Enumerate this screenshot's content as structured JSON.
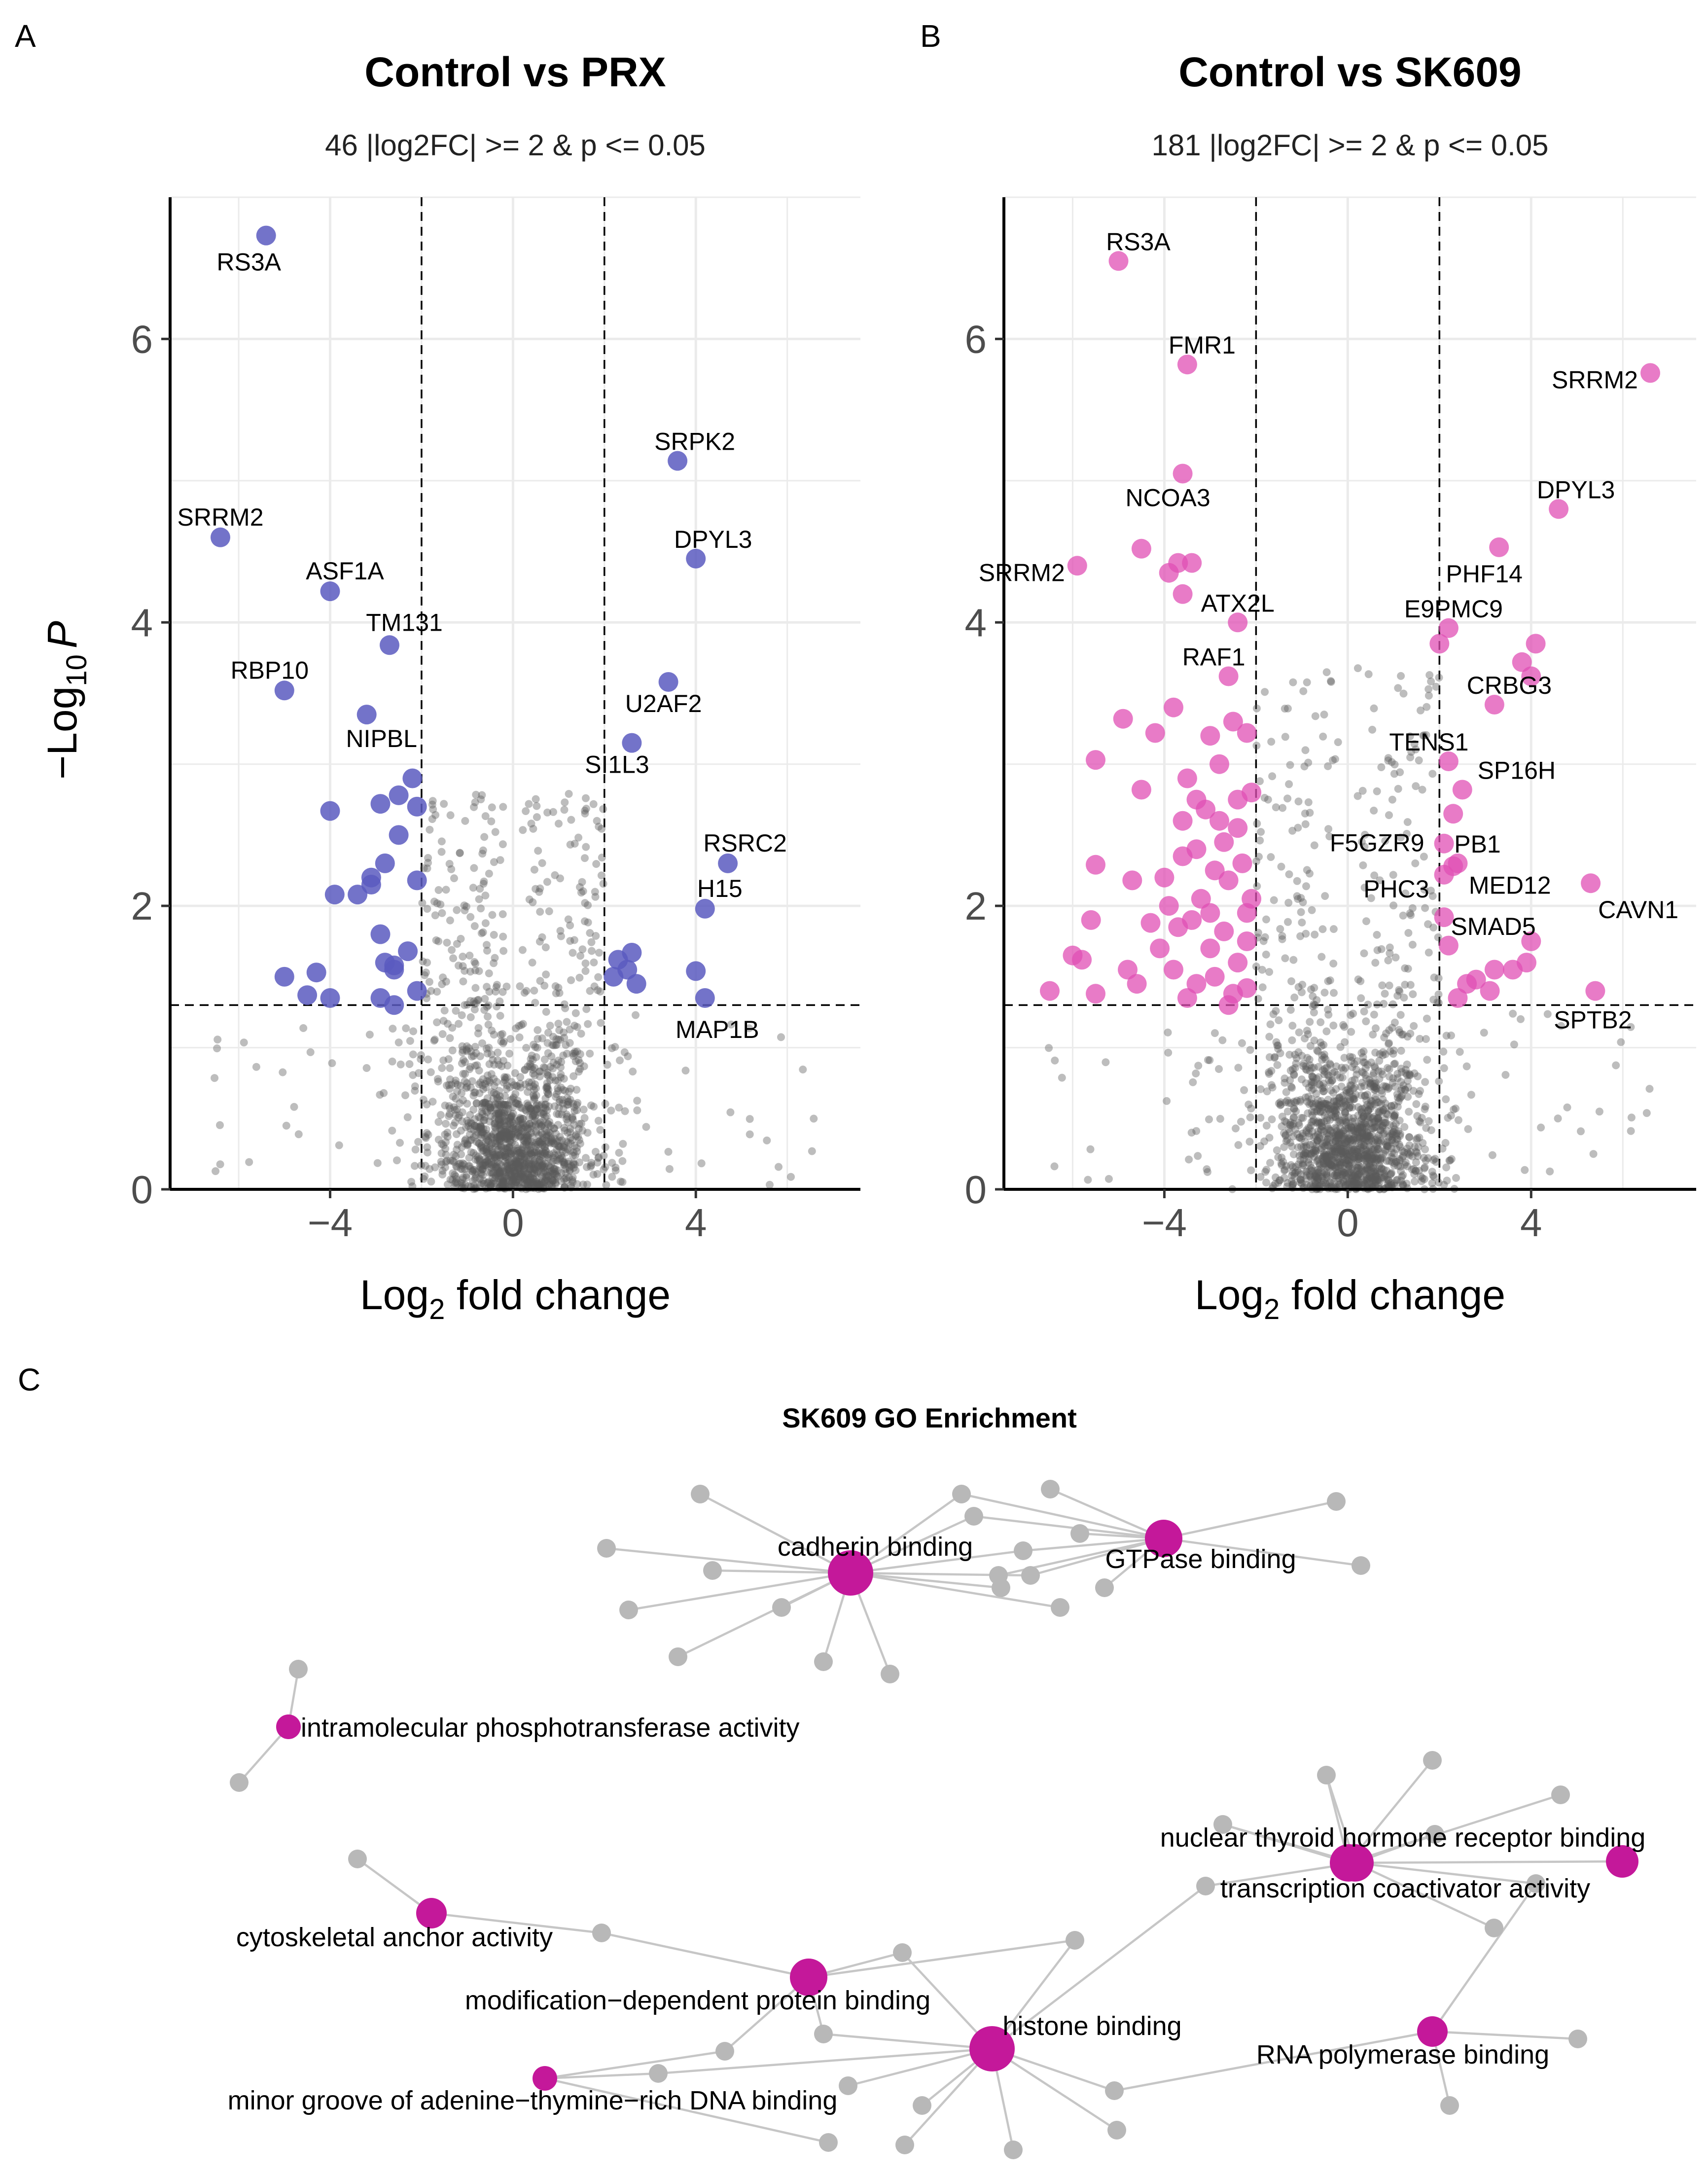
{
  "panel_letters": [
    "A",
    "B",
    "C"
  ],
  "axis_text": {
    "xlabel_main": "Log",
    "xlabel_sub": "2",
    "xlabel_rest": " fold change",
    "ylabel_prefix": "−Log",
    "ylabel_sub": "10",
    "ylabel_p": "P"
  },
  "colors": {
    "prx_sig": "#5b5bc0",
    "sk609_sig": "#e04fb4",
    "background_points": "#5a5a5a",
    "go_term": "#c4189a",
    "go_gene": "#b8b8b8",
    "go_edge": "#c6c6c6"
  },
  "chart_data": [
    {
      "type": "scatter",
      "panel": "A",
      "title": "Control vs PRX",
      "subtitle": "46 |log2FC| >= 2 & p <= 0.05",
      "xlabel": "Log2 fold change",
      "ylabel": "−Log10 P",
      "xlim": [
        -7.5,
        7.6
      ],
      "ylim": [
        0,
        7
      ],
      "xticks": [
        -4,
        0,
        4
      ],
      "yticks": [
        0,
        2,
        4,
        6
      ],
      "xtick_labels": [
        "−4",
        "0",
        "4"
      ],
      "ytick_labels": [
        "0",
        "2",
        "4",
        "6"
      ],
      "grid": true,
      "vlines": [
        -2,
        2
      ],
      "hline": 1.3,
      "significant_points": [
        {
          "x": -5.4,
          "y": 6.73,
          "label": "RS3A"
        },
        {
          "x": -6.4,
          "y": 4.6,
          "label": "SRRM2"
        },
        {
          "x": -4.0,
          "y": 4.22,
          "label": "ASF1A"
        },
        {
          "x": -2.7,
          "y": 3.84,
          "label": "TM131"
        },
        {
          "x": -5.0,
          "y": 3.52,
          "label": "RBP10"
        },
        {
          "x": -3.2,
          "y": 3.35,
          "label": "NIPBL"
        },
        {
          "x": 3.6,
          "y": 5.14,
          "label": "SRPK2"
        },
        {
          "x": 4.0,
          "y": 4.45,
          "label": "DPYL3"
        },
        {
          "x": 3.4,
          "y": 3.58,
          "label": "U2AF2"
        },
        {
          "x": 2.6,
          "y": 3.15,
          "label": "SI1L3"
        },
        {
          "x": 4.7,
          "y": 2.3,
          "label": "RSRC2"
        },
        {
          "x": 4.2,
          "y": 1.98,
          "label": "H15"
        },
        {
          "x": 4.2,
          "y": 1.35,
          "label": "MAP1B"
        },
        {
          "x": -2.2,
          "y": 2.9,
          "label": ""
        },
        {
          "x": -2.5,
          "y": 2.78,
          "label": ""
        },
        {
          "x": -2.1,
          "y": 2.7,
          "label": ""
        },
        {
          "x": -2.9,
          "y": 2.72,
          "label": ""
        },
        {
          "x": -4.0,
          "y": 2.67,
          "label": ""
        },
        {
          "x": -2.5,
          "y": 2.5,
          "label": ""
        },
        {
          "x": -2.8,
          "y": 2.3,
          "label": ""
        },
        {
          "x": -3.1,
          "y": 2.2,
          "label": ""
        },
        {
          "x": -3.1,
          "y": 2.15,
          "label": ""
        },
        {
          "x": -2.1,
          "y": 2.18,
          "label": ""
        },
        {
          "x": -3.4,
          "y": 2.08,
          "label": ""
        },
        {
          "x": -3.9,
          "y": 2.08,
          "label": ""
        },
        {
          "x": -2.9,
          "y": 1.8,
          "label": ""
        },
        {
          "x": -2.3,
          "y": 1.68,
          "label": ""
        },
        {
          "x": -2.8,
          "y": 1.6,
          "label": ""
        },
        {
          "x": -2.6,
          "y": 1.55,
          "label": ""
        },
        {
          "x": -2.6,
          "y": 1.58,
          "label": ""
        },
        {
          "x": -2.1,
          "y": 1.4,
          "label": ""
        },
        {
          "x": -2.6,
          "y": 1.3,
          "label": ""
        },
        {
          "x": -2.9,
          "y": 1.35,
          "label": ""
        },
        {
          "x": -4.0,
          "y": 1.35,
          "label": ""
        },
        {
          "x": -4.5,
          "y": 1.37,
          "label": ""
        },
        {
          "x": -4.3,
          "y": 1.53,
          "label": ""
        },
        {
          "x": -5.0,
          "y": 1.5,
          "label": ""
        },
        {
          "x": 2.3,
          "y": 1.62,
          "label": ""
        },
        {
          "x": 2.6,
          "y": 1.67,
          "label": ""
        },
        {
          "x": 2.5,
          "y": 1.55,
          "label": ""
        },
        {
          "x": 2.2,
          "y": 1.5,
          "label": ""
        },
        {
          "x": 2.7,
          "y": 1.45,
          "label": ""
        },
        {
          "x": 4.0,
          "y": 1.54,
          "label": ""
        }
      ]
    },
    {
      "type": "scatter",
      "panel": "B",
      "title": "Control vs SK609",
      "subtitle": "181 |log2FC| >= 2 & p <= 0.05",
      "xlabel": "Log2 fold change",
      "ylabel": "−Log10 P",
      "xlim": [
        -7.5,
        7.6
      ],
      "ylim": [
        0,
        7
      ],
      "xticks": [
        -4,
        0,
        4
      ],
      "yticks": [
        0,
        2,
        4,
        6
      ],
      "xtick_labels": [
        "−4",
        "0",
        "4"
      ],
      "ytick_labels": [
        "0",
        "2",
        "4",
        "6"
      ],
      "grid": true,
      "vlines": [
        -2,
        2
      ],
      "hline": 1.3,
      "significant_points": [
        {
          "x": -5.0,
          "y": 6.55,
          "label": "RS3A"
        },
        {
          "x": -3.5,
          "y": 5.82,
          "label": "FMR1"
        },
        {
          "x": 6.6,
          "y": 5.76,
          "label": "SRRM2"
        },
        {
          "x": -3.6,
          "y": 5.05,
          "label": "NCOA3"
        },
        {
          "x": 4.6,
          "y": 4.8,
          "label": "DPYL3"
        },
        {
          "x": -5.9,
          "y": 4.4,
          "label": "SRRM2"
        },
        {
          "x": 3.3,
          "y": 4.53,
          "label": "PHF14"
        },
        {
          "x": -2.4,
          "y": 4.0,
          "label": "ATX2L"
        },
        {
          "x": 2.2,
          "y": 3.96,
          "label": "E9PMC9"
        },
        {
          "x": -2.6,
          "y": 3.62,
          "label": "RAF1"
        },
        {
          "x": 3.2,
          "y": 3.42,
          "label": "CRBG3"
        },
        {
          "x": 2.2,
          "y": 3.02,
          "label": "TENS1"
        },
        {
          "x": 2.5,
          "y": 2.82,
          "label": "SP16H"
        },
        {
          "x": 2.4,
          "y": 2.3,
          "label": "PB1"
        },
        {
          "x": 2.1,
          "y": 2.44,
          "label": "F5GZR9"
        },
        {
          "x": 2.3,
          "y": 2.28,
          "label": "MED12"
        },
        {
          "x": 2.1,
          "y": 2.22,
          "label": "PHC3"
        },
        {
          "x": 2.1,
          "y": 1.92,
          "label": "SMAD5"
        },
        {
          "x": 5.3,
          "y": 2.16,
          "label": "CAVN1"
        },
        {
          "x": 5.4,
          "y": 1.4,
          "label": "SPTB2"
        },
        {
          "x": -4.5,
          "y": 4.52,
          "label": ""
        },
        {
          "x": -3.9,
          "y": 4.35,
          "label": ""
        },
        {
          "x": -3.7,
          "y": 4.42,
          "label": ""
        },
        {
          "x": -3.4,
          "y": 4.42,
          "label": ""
        },
        {
          "x": -3.6,
          "y": 4.2,
          "label": ""
        },
        {
          "x": 3.8,
          "y": 3.72,
          "label": ""
        },
        {
          "x": 4.1,
          "y": 3.85,
          "label": ""
        },
        {
          "x": 4.0,
          "y": 3.62,
          "label": ""
        },
        {
          "x": 2.0,
          "y": 3.85,
          "label": ""
        },
        {
          "x": 2.3,
          "y": 2.65,
          "label": ""
        },
        {
          "x": 3.2,
          "y": 1.55,
          "label": ""
        },
        {
          "x": 2.6,
          "y": 1.45,
          "label": ""
        },
        {
          "x": 3.1,
          "y": 1.4,
          "label": ""
        },
        {
          "x": 3.9,
          "y": 1.6,
          "label": ""
        },
        {
          "x": 4.0,
          "y": 1.75,
          "label": ""
        },
        {
          "x": 2.2,
          "y": 1.72,
          "label": ""
        },
        {
          "x": 2.4,
          "y": 1.35,
          "label": ""
        },
        {
          "x": 2.8,
          "y": 1.48,
          "label": ""
        },
        {
          "x": 3.6,
          "y": 1.55,
          "label": ""
        },
        {
          "x": -5.5,
          "y": 3.03,
          "label": ""
        },
        {
          "x": -4.9,
          "y": 3.32,
          "label": ""
        },
        {
          "x": -4.2,
          "y": 3.22,
          "label": ""
        },
        {
          "x": -4.5,
          "y": 2.82,
          "label": ""
        },
        {
          "x": -5.6,
          "y": 1.9,
          "label": ""
        },
        {
          "x": -5.5,
          "y": 2.29,
          "label": ""
        },
        {
          "x": -4.7,
          "y": 2.18,
          "label": ""
        },
        {
          "x": -5.8,
          "y": 1.62,
          "label": ""
        },
        {
          "x": -6.0,
          "y": 1.65,
          "label": ""
        },
        {
          "x": -5.5,
          "y": 1.38,
          "label": ""
        },
        {
          "x": -6.5,
          "y": 1.4,
          "label": ""
        },
        {
          "x": -4.8,
          "y": 1.55,
          "label": ""
        },
        {
          "x": -4.6,
          "y": 1.45,
          "label": ""
        },
        {
          "x": -4.3,
          "y": 1.88,
          "label": ""
        },
        {
          "x": -3.8,
          "y": 3.4,
          "label": ""
        },
        {
          "x": -3.5,
          "y": 2.9,
          "label": ""
        },
        {
          "x": -3.0,
          "y": 3.2,
          "label": ""
        },
        {
          "x": -2.5,
          "y": 3.3,
          "label": ""
        },
        {
          "x": -2.2,
          "y": 3.22,
          "label": ""
        },
        {
          "x": -3.1,
          "y": 2.68,
          "label": ""
        },
        {
          "x": -2.8,
          "y": 2.6,
          "label": ""
        },
        {
          "x": -2.4,
          "y": 2.75,
          "label": ""
        },
        {
          "x": -2.1,
          "y": 2.8,
          "label": ""
        },
        {
          "x": -3.6,
          "y": 2.35,
          "label": ""
        },
        {
          "x": -3.3,
          "y": 2.4,
          "label": ""
        },
        {
          "x": -2.9,
          "y": 2.25,
          "label": ""
        },
        {
          "x": -2.6,
          "y": 2.18,
          "label": ""
        },
        {
          "x": -2.3,
          "y": 2.3,
          "label": ""
        },
        {
          "x": -2.1,
          "y": 2.05,
          "label": ""
        },
        {
          "x": -3.9,
          "y": 2.0,
          "label": ""
        },
        {
          "x": -3.7,
          "y": 1.85,
          "label": ""
        },
        {
          "x": -3.4,
          "y": 1.9,
          "label": ""
        },
        {
          "x": -3.0,
          "y": 1.7,
          "label": ""
        },
        {
          "x": -2.7,
          "y": 1.82,
          "label": ""
        },
        {
          "x": -2.4,
          "y": 1.6,
          "label": ""
        },
        {
          "x": -2.2,
          "y": 1.75,
          "label": ""
        },
        {
          "x": -3.8,
          "y": 1.55,
          "label": ""
        },
        {
          "x": -3.3,
          "y": 1.45,
          "label": ""
        },
        {
          "x": -2.9,
          "y": 1.5,
          "label": ""
        },
        {
          "x": -2.5,
          "y": 1.38,
          "label": ""
        },
        {
          "x": -2.2,
          "y": 1.42,
          "label": ""
        },
        {
          "x": -3.5,
          "y": 1.35,
          "label": ""
        },
        {
          "x": -4.1,
          "y": 1.7,
          "label": ""
        },
        {
          "x": -3.2,
          "y": 2.05,
          "label": ""
        },
        {
          "x": -2.7,
          "y": 2.45,
          "label": ""
        },
        {
          "x": -2.4,
          "y": 2.55,
          "label": ""
        },
        {
          "x": -3.6,
          "y": 2.6,
          "label": ""
        },
        {
          "x": -2.2,
          "y": 1.95,
          "label": ""
        },
        {
          "x": -3.0,
          "y": 1.95,
          "label": ""
        },
        {
          "x": -2.6,
          "y": 1.3,
          "label": ""
        },
        {
          "x": -4.0,
          "y": 2.2,
          "label": ""
        },
        {
          "x": -3.3,
          "y": 2.75,
          "label": ""
        },
        {
          "x": -2.8,
          "y": 3.0,
          "label": ""
        }
      ]
    },
    {
      "type": "network",
      "panel": "C",
      "title": "SK609 GO Enrichment",
      "term_nodes": [
        {
          "label": "cadherin binding",
          "size": 5
        },
        {
          "label": "GTPase binding",
          "size": 4
        },
        {
          "label": "intramolecular phosphotransferase activity",
          "size": 2
        },
        {
          "label": "nuclear thyroid hormone receptor binding",
          "size": 4
        },
        {
          "label": "transcription coactivator activity",
          "size": 4
        },
        {
          "label": "cytoskeletal anchor activity",
          "size": 3
        },
        {
          "label": "modification−dependent protein binding",
          "size": 4
        },
        {
          "label": "histone binding",
          "size": 5
        },
        {
          "label": "RNA polymerase binding",
          "size": 3
        },
        {
          "label": "minor groove of adenine−thymine−rich DNA binding",
          "size": 2
        }
      ]
    }
  ]
}
